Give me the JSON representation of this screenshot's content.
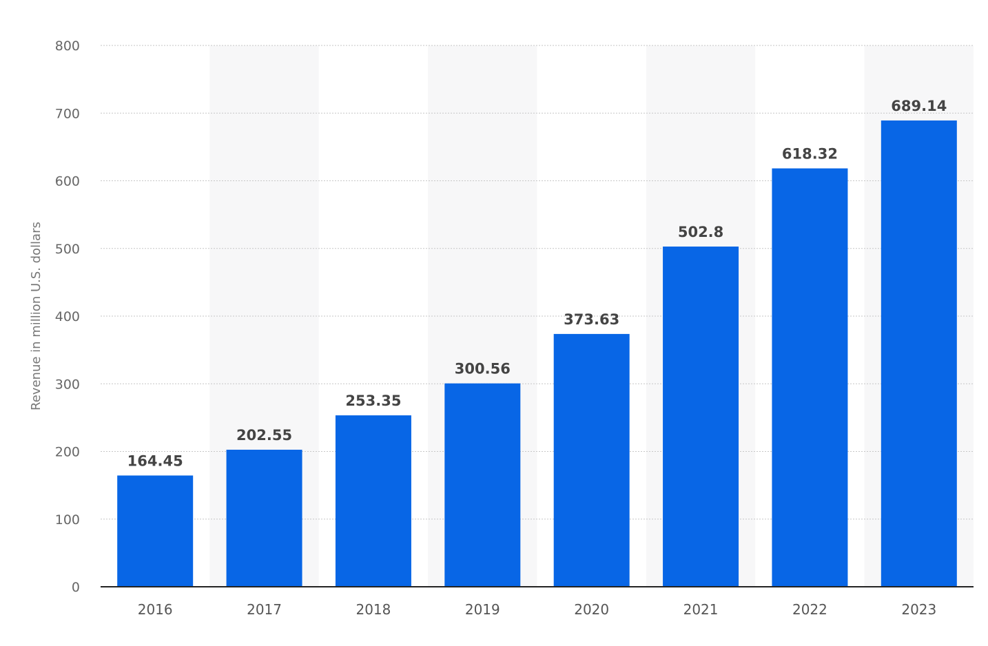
{
  "chart_data": {
    "type": "bar",
    "categories": [
      "2016",
      "2017",
      "2018",
      "2019",
      "2020",
      "2021",
      "2022",
      "2023"
    ],
    "values": [
      164.45,
      202.55,
      253.35,
      300.56,
      373.63,
      502.8,
      618.32,
      689.14
    ],
    "value_labels": [
      "164.45",
      "202.55",
      "253.35",
      "300.56",
      "373.63",
      "502.8",
      "618.32",
      "689.14"
    ],
    "title": "",
    "xlabel": "",
    "ylabel": "Revenue in million U.S. dollars",
    "ylim": [
      0,
      800
    ],
    "yticks": [
      0,
      100,
      200,
      300,
      400,
      500,
      600,
      700,
      800
    ],
    "grid": true,
    "legend": "none",
    "bar_color": "#0866e6"
  }
}
